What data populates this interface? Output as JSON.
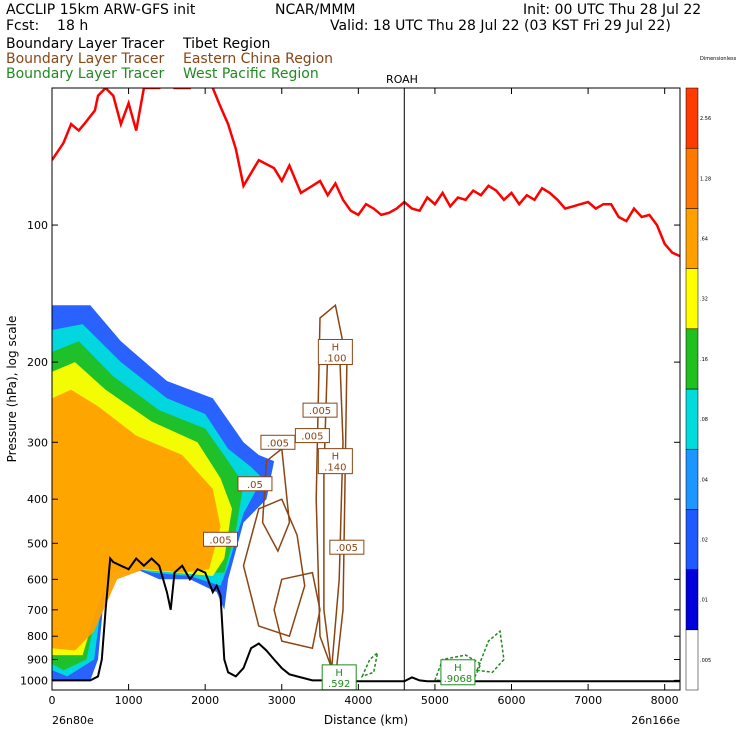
{
  "header": {
    "model": "ACCLIP 15km ARW-GFS init",
    "center": "NCAR/MMM",
    "init": "Init: 00 UTC Thu 28 Jul 22",
    "fcst": "Fcst:    18 h",
    "valid": "Valid: 18 UTC Thu 28 Jul 22 (03 KST Fri 29 Jul 22)",
    "legend": [
      {
        "label": "Boundary Layer Tracer",
        "region": "Tibet Region",
        "color": "#000000"
      },
      {
        "label": "Boundary Layer Tracer",
        "region": "Eastern China Region",
        "color": "#8b4513"
      },
      {
        "label": "Boundary Layer Tracer",
        "region": "West Pacific Region",
        "color": "#1f8a1f"
      }
    ]
  },
  "chart_data": {
    "type": "contour",
    "xlabel": "Distance (km)",
    "ylabel": "Pressure (hPa), log scale",
    "xlim": [
      0,
      8200
    ],
    "ylim": [
      1050,
      50
    ],
    "yscale": "log",
    "x_ticks": [
      0,
      1000,
      2000,
      3000,
      4000,
      5000,
      6000,
      7000,
      8000
    ],
    "y_ticks": [
      100,
      200,
      300,
      400,
      500,
      600,
      700,
      800,
      900,
      1000
    ],
    "start_label": "26n80e",
    "end_label": "26n166e",
    "reference_line": {
      "label": "ROAH",
      "x": 4600
    },
    "colorbar": {
      "title": "Dimensionless",
      "levels": [
        ".005",
        ".01",
        ".02",
        ".04",
        ".08",
        ".16",
        ".32",
        ".64",
        "1.28",
        "2.56",
        "Dimensionless"
      ],
      "colors": [
        "#ffffff",
        "#0000dd",
        "#1e5aff",
        "#1e96ff",
        "#00dcdc",
        "#20c020",
        "#ffff00",
        "#ffa000",
        "#ff7800",
        "#ff3c00"
      ]
    },
    "tropopause": {
      "color": "#ff0000",
      "x": [
        0,
        150,
        250,
        350,
        420,
        560,
        600,
        700,
        800,
        900,
        1000,
        1100,
        1200,
        1400,
        1500,
        1550,
        1600,
        1800,
        1980,
        2100,
        2200,
        2300,
        2400,
        2500,
        2700,
        2900,
        3000,
        3100,
        3250,
        3400,
        3500,
        3600,
        3700,
        3800,
        3900,
        4000,
        4100,
        4200,
        4300,
        4400,
        4500,
        4600,
        4700,
        4800,
        4900,
        5000,
        5100,
        5200,
        5300,
        5400,
        5500,
        5600,
        5700,
        5800,
        5900,
        6000,
        6100,
        6200,
        6300,
        6400,
        6500,
        6600,
        6700,
        6800,
        6900,
        7000,
        7100,
        7200,
        7300,
        7400,
        7500,
        7600,
        7700,
        7800,
        7900,
        8000,
        8100,
        8200
      ],
      "p": [
        72,
        66,
        60,
        62,
        60,
        56,
        52,
        50,
        52,
        60,
        54,
        62,
        50,
        50,
        49,
        45,
        50,
        50,
        45,
        50,
        55,
        60,
        68,
        82,
        72,
        75,
        80,
        74,
        85,
        82,
        80,
        86,
        81,
        88,
        93,
        95,
        90,
        92,
        95,
        94,
        92,
        89,
        92,
        93,
        87,
        90,
        85,
        91,
        87,
        88,
        84,
        86,
        82,
        84,
        88,
        85,
        90,
        86,
        88,
        83,
        85,
        88,
        92,
        91,
        90,
        89,
        92,
        90,
        90,
        96,
        98,
        92,
        96,
        95,
        100,
        110,
        115,
        117
      ]
    },
    "terrain": {
      "color": "#000000",
      "x": [
        0,
        500,
        600,
        650,
        700,
        760,
        800,
        900,
        1000,
        1100,
        1200,
        1300,
        1400,
        1500,
        1550,
        1600,
        1700,
        1800,
        1900,
        2000,
        2100,
        2150,
        2200,
        2250,
        2300,
        2400,
        2500,
        2600,
        2700,
        2800,
        2900,
        3000,
        3100,
        3200,
        3400,
        3600,
        3800,
        4000,
        4200,
        4400,
        4500,
        4600,
        4700,
        4800,
        4900,
        5000,
        5500,
        6000,
        6500,
        7000,
        7500,
        8000,
        8200
      ],
      "p": [
        1000,
        1000,
        980,
        900,
        700,
        540,
        550,
        560,
        570,
        540,
        560,
        540,
        560,
        640,
        700,
        580,
        560,
        600,
        570,
        580,
        640,
        620,
        650,
        900,
        960,
        980,
        940,
        850,
        830,
        860,
        900,
        940,
        970,
        980,
        1000,
        1000,
        1005,
        1005,
        1005,
        1005,
        1005,
        1005,
        985,
        1000,
        1005,
        1005,
        1005,
        1005,
        1005,
        1005,
        1005,
        1005,
        1005
      ]
    },
    "labels": [
      {
        "text": "H",
        "text2": ".100",
        "x": 3700,
        "p": 190,
        "color": "#8b4513"
      },
      {
        "text": ".005",
        "x": 3500,
        "p": 255,
        "color": "#8b4513"
      },
      {
        "text": ".005",
        "x": 3400,
        "p": 290,
        "color": "#8b4513"
      },
      {
        "text": ".005",
        "x": 2950,
        "p": 300,
        "color": "#8b4513"
      },
      {
        "text": "H",
        "text2": ".140",
        "x": 3700,
        "p": 330,
        "color": "#8b4513"
      },
      {
        "text": ".05",
        "x": 2650,
        "p": 370,
        "color": "#8b4513"
      },
      {
        "text": ".005",
        "x": 2200,
        "p": 490,
        "color": "#8b4513"
      },
      {
        "text": ".005",
        "x": 3850,
        "p": 510,
        "color": "#8b4513"
      },
      {
        "text": "H",
        "text2": ".592",
        "x": 3750,
        "p": 985,
        "color": "#1f8a1f"
      },
      {
        "text": "H",
        "text2": ".9068",
        "x": 5300,
        "p": 960,
        "color": "#1f8a1f"
      }
    ]
  }
}
